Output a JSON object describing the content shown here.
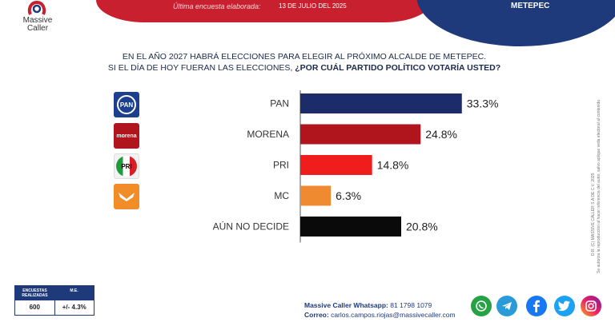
{
  "header": {
    "subtitle": "Última encuesta elaborada:",
    "date": "13 DE JULIO DEL 2025",
    "city": "METEPEC",
    "brand_line1": "Massive",
    "brand_line2": "Caller"
  },
  "question": {
    "line1": "EN EL AÑO 2027 HABRÁ ELECCIONES PARA ELEGIR AL PRÓXIMO ALCALDE DE METEPEC.",
    "line2_prefix": "SI EL DÍA DE HOY FUERAN LAS ELECCIONES, ",
    "line2_bold": "¿POR CUÁL PARTIDO POLÍTICO VOTARÍA USTED?"
  },
  "chart_data": {
    "type": "bar",
    "orientation": "horizontal",
    "categories": [
      "PAN",
      "MORENA",
      "PRI",
      "MC",
      "AÚN NO DECIDE"
    ],
    "values": [
      33.3,
      24.8,
      14.8,
      6.3,
      20.8
    ],
    "value_labels": [
      "33.3%",
      "24.8%",
      "14.8%",
      "6.3%",
      "20.8%"
    ],
    "colors": [
      "#1c2b6a",
      "#b0141c",
      "#f01d1d",
      "#f08a30",
      "#0a0a0a"
    ],
    "xlim": [
      0,
      34
    ],
    "grid": false,
    "legend": "none"
  },
  "party_logos": [
    {
      "icon": "pan-logo-icon",
      "text": "PAN",
      "bg": "#1d3f8f"
    },
    {
      "icon": "morena-logo-icon",
      "text": "morena",
      "bg": "#b0141c"
    },
    {
      "icon": "pri-logo-icon",
      "text": "PRI",
      "bg": "#f2f2f2"
    },
    {
      "icon": "mc-logo-icon",
      "text": "",
      "bg": "#f28c28"
    }
  ],
  "sample": {
    "col1_header": "ENCUESTAS REALIZADAS",
    "col2_header": "M.E.",
    "col1_value": "600",
    "col2_value": "+/- 4.3%"
  },
  "contact": {
    "whatsapp_label": "Massive Caller Whatsapp:",
    "whatsapp_value": "81 1798 1079",
    "email_label": "Correo:",
    "email_value": "carlos.campos.riojas@massivecaller.com"
  },
  "side_note": {
    "line1": "D.R. (C) MASSIVE CALLER S.A DE C.V. 2025",
    "line2": "Se autoriza la reproducción al hacer referencia del autor, salvo aplique veda electoral al contenido."
  },
  "social_icons": [
    {
      "icon": "whatsapp-icon",
      "color": "#25a244"
    },
    {
      "icon": "telegram-icon",
      "color": "#2a9bd8"
    },
    {
      "icon": "facebook-icon",
      "color": "#1877f2"
    },
    {
      "icon": "twitter-icon",
      "color": "#1da1f2"
    },
    {
      "icon": "instagram-icon",
      "color": "#d6249f"
    }
  ]
}
